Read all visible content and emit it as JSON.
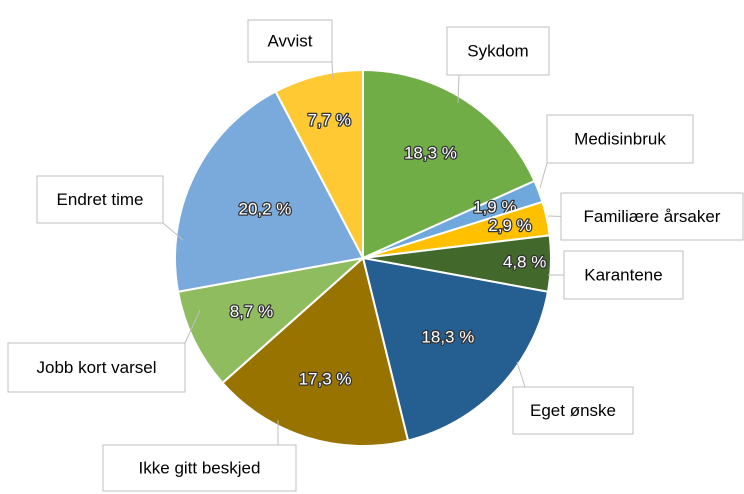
{
  "chart_data": {
    "type": "pie",
    "categories": [
      "Sykdom",
      "Medisinbruk",
      "Familiære årsaker",
      "Karantene",
      "Eget ønske",
      "Ikke gitt beskjed",
      "Jobb kort varsel",
      "Endret time",
      "Avvist"
    ],
    "values": [
      18.3,
      1.9,
      2.9,
      4.8,
      18.3,
      17.3,
      8.7,
      20.2,
      7.7
    ],
    "value_labels": [
      "18,3 %",
      "1,9 %",
      "2,9 %",
      "4,8 %",
      "18,3 %",
      "17,3 %",
      "8,7 %",
      "20,2 %",
      "7,7 %"
    ],
    "colors": [
      "#70ad47",
      "#6fa8dc",
      "#ffc000",
      "#43682b",
      "#255e91",
      "#997300",
      "#8fbc5f",
      "#7aaadc",
      "#ffc933"
    ]
  }
}
